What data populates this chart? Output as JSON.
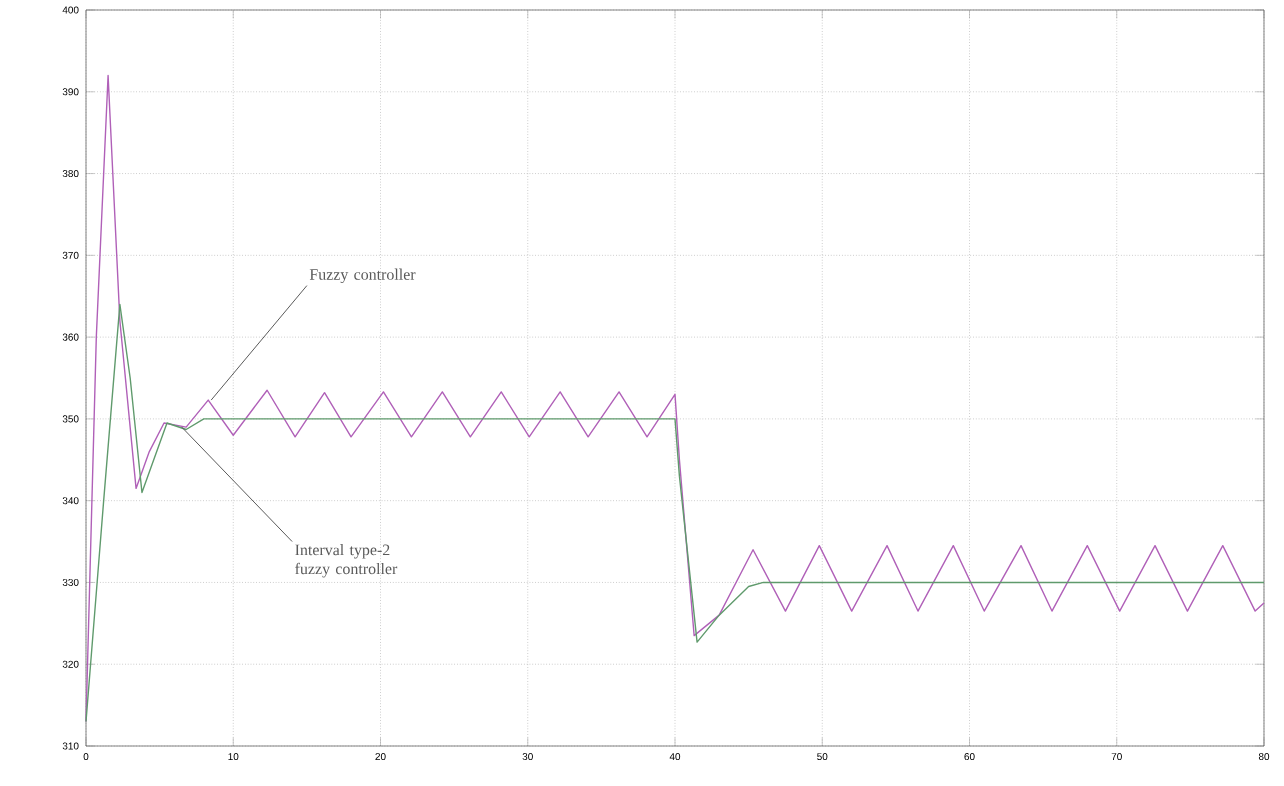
{
  "chart_data": {
    "type": "line",
    "xlim": [
      0,
      80
    ],
    "ylim": [
      310,
      400
    ],
    "xticks": [
      0,
      10,
      20,
      30,
      40,
      50,
      60,
      70,
      80
    ],
    "yticks": [
      310,
      320,
      330,
      340,
      350,
      360,
      370,
      380,
      390,
      400
    ],
    "grid": true,
    "marker": "none",
    "line_style": "solid",
    "series": [
      {
        "color": "#b060b8",
        "x": [
          0,
          0.7,
          1.5,
          2.3,
          3.4,
          4.3,
          5.3,
          6.8,
          8.3,
          10,
          12.3,
          14.2,
          16.2,
          18,
          20.2,
          22.1,
          24.2,
          26.1,
          28.2,
          30.1,
          32.2,
          34.1,
          36.2,
          38.1,
          40,
          40.3,
          41.3,
          43,
          45.3,
          47.5,
          49.8,
          52,
          54.4,
          56.5,
          58.9,
          61,
          63.5,
          65.6,
          68,
          70.2,
          72.6,
          74.8,
          77.2,
          79.4,
          80
        ],
        "values": [
          313,
          360,
          392,
          362,
          341.5,
          346,
          349.5,
          349,
          352.3,
          348,
          353.5,
          347.8,
          353.2,
          347.8,
          353.3,
          347.8,
          353.3,
          347.8,
          353.3,
          347.8,
          353.3,
          347.8,
          353.3,
          347.8,
          353,
          345,
          323.5,
          326,
          334,
          326.5,
          334.5,
          326.5,
          334.5,
          326.5,
          334.5,
          326.5,
          334.5,
          326.5,
          334.5,
          326.5,
          334.5,
          326.5,
          334.5,
          326.5,
          327.5
        ]
      },
      {
        "color": "#5f9a6c",
        "x": [
          0,
          1.2,
          2.3,
          3.0,
          3.8,
          4.6,
          5.5,
          6.8,
          8,
          40,
          40.3,
          41.5,
          43,
          45,
          46,
          80
        ],
        "values": [
          313,
          340,
          364,
          355,
          341,
          345,
          349.5,
          348.7,
          350,
          350,
          343,
          322.7,
          326,
          329.5,
          330,
          330
        ]
      }
    ],
    "annotations": [
      {
        "text": "Fuzzy controller",
        "x": 8.5,
        "y": 352.3
      },
      {
        "text": "Interval type-2 fuzzy controller",
        "x": 6.5,
        "y": 349
      }
    ]
  }
}
